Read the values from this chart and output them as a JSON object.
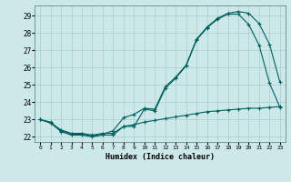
{
  "title": "",
  "xlabel": "Humidex (Indice chaleur)",
  "ylabel": "",
  "background_color": "#cde8e8",
  "grid_color": "#b0d4d4",
  "line_color": "#006060",
  "xlim": [
    -0.5,
    23.5
  ],
  "ylim": [
    21.7,
    29.6
  ],
  "yticks": [
    22,
    23,
    24,
    25,
    26,
    27,
    28,
    29
  ],
  "xticks": [
    0,
    1,
    2,
    3,
    4,
    5,
    6,
    7,
    8,
    9,
    10,
    11,
    12,
    13,
    14,
    15,
    16,
    17,
    18,
    19,
    20,
    21,
    22,
    23
  ],
  "line1_x": [
    0,
    1,
    2,
    3,
    4,
    5,
    6,
    7,
    8,
    9,
    10,
    11,
    12,
    13,
    14,
    15,
    16,
    17,
    18,
    19,
    20,
    21,
    22,
    23
  ],
  "line1_y": [
    23.0,
    22.8,
    22.3,
    22.1,
    22.1,
    22.0,
    22.1,
    22.1,
    22.6,
    22.6,
    23.6,
    23.5,
    24.8,
    25.4,
    26.1,
    27.6,
    28.3,
    28.8,
    29.1,
    29.1,
    28.5,
    27.3,
    25.1,
    23.7
  ],
  "line2_x": [
    0,
    1,
    2,
    3,
    4,
    5,
    6,
    7,
    8,
    9,
    10,
    11,
    12,
    13,
    14,
    15,
    16,
    17,
    18,
    19,
    20,
    21,
    22,
    23
  ],
  "line2_y": [
    23.0,
    22.85,
    22.35,
    22.15,
    22.15,
    22.05,
    22.15,
    22.35,
    23.1,
    23.3,
    23.65,
    23.6,
    24.9,
    25.45,
    26.15,
    27.65,
    28.35,
    28.85,
    29.15,
    29.25,
    29.15,
    28.55,
    27.35,
    25.15
  ],
  "line3_x": [
    0,
    1,
    2,
    3,
    4,
    5,
    6,
    7,
    8,
    9,
    10,
    11,
    12,
    13,
    14,
    15,
    16,
    17,
    18,
    19,
    20,
    21,
    22,
    23
  ],
  "line3_y": [
    23.0,
    22.8,
    22.4,
    22.2,
    22.2,
    22.1,
    22.2,
    22.2,
    22.6,
    22.7,
    22.85,
    22.95,
    23.05,
    23.15,
    23.25,
    23.35,
    23.45,
    23.5,
    23.55,
    23.6,
    23.65,
    23.65,
    23.7,
    23.75
  ]
}
